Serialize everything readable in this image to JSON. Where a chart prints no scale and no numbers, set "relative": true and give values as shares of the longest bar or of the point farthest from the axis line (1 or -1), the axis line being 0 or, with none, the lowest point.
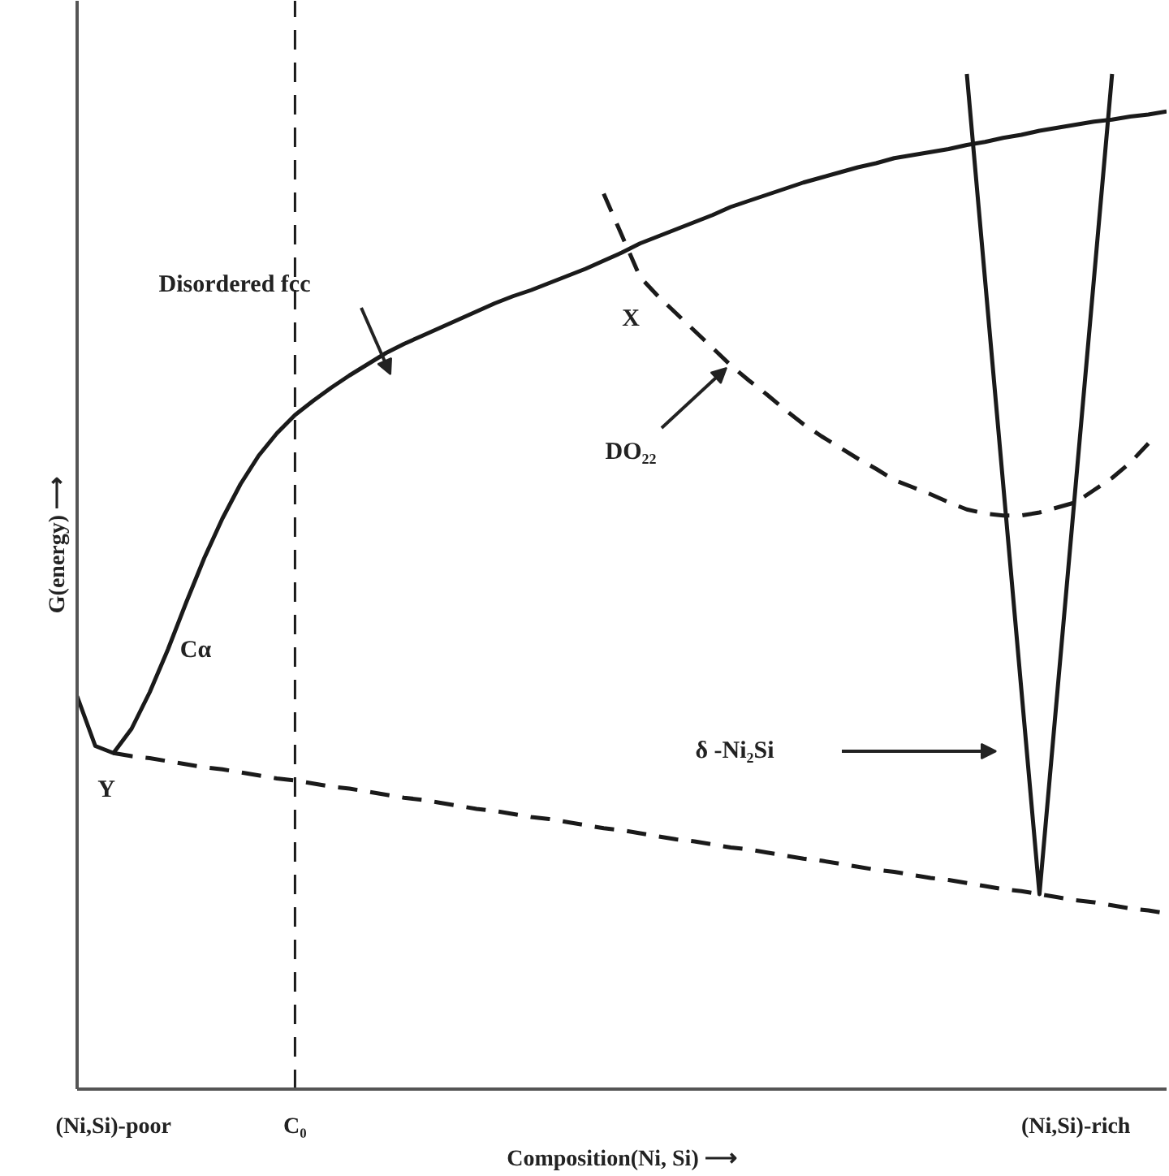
{
  "chart_data": {
    "type": "line",
    "relative": true,
    "xlabel": "Composition(Ni, Si) ⟶",
    "ylabel": "G(energy) ⟶",
    "categories": [
      null,
      null,
      "(Ni,Si)-poor",
      null,
      null,
      null,
      null,
      null,
      null,
      null,
      null,
      null,
      "C₀",
      null,
      null,
      null,
      null,
      null,
      null,
      null,
      null,
      null,
      null,
      null,
      null,
      null,
      null,
      null,
      null,
      null,
      null,
      null,
      null,
      null,
      null,
      null,
      null,
      null,
      null,
      null,
      null,
      null,
      null,
      null,
      null,
      null,
      null,
      null,
      null,
      null,
      null,
      null,
      null,
      null,
      null,
      "(Ni,Si)-rich",
      null,
      null,
      null,
      null,
      null
    ],
    "series": [
      {
        "color": "#1a1a1a",
        "line_style": "solid",
        "values": [
          0.387,
          0.338,
          0.331,
          0.355,
          0.391,
          0.433,
          0.479,
          0.523,
          0.562,
          0.596,
          0.624,
          0.646,
          0.664,
          0.678,
          0.691,
          0.703,
          0.714,
          0.725,
          0.734,
          0.742,
          0.75,
          0.758,
          0.766,
          0.774,
          0.781,
          0.787,
          0.794,
          0.801,
          0.808,
          0.816,
          0.824,
          0.833,
          0.84,
          0.847,
          0.854,
          0.861,
          0.869,
          0.875,
          0.881,
          0.887,
          0.893,
          0.898,
          0.903,
          0.908,
          0.912,
          0.917,
          0.92,
          0.923,
          0.926,
          0.93,
          0.933,
          0.937,
          0.94,
          0.944,
          0.947,
          0.95,
          0.953,
          0.955,
          0.958,
          0.96,
          0.963
        ]
      },
      {
        "color": "#1a1a1a",
        "line_style": "dashed",
        "values": [
          null,
          null,
          null,
          null,
          null,
          null,
          null,
          null,
          null,
          null,
          null,
          null,
          null,
          null,
          null,
          null,
          null,
          null,
          null,
          null,
          null,
          null,
          null,
          null,
          null,
          null,
          null,
          null,
          null,
          0.882,
          0.841,
          0.8,
          0.781,
          0.764,
          0.747,
          0.73,
          0.713,
          0.698,
          0.684,
          0.669,
          0.655,
          0.643,
          0.632,
          0.621,
          0.611,
          0.6,
          0.593,
          0.586,
          0.578,
          0.571,
          0.567,
          0.565,
          0.565,
          0.568,
          0.573,
          0.578,
          0.59,
          0.602,
          0.617,
          0.636,
          null
        ]
      },
      {
        "color": "#1a1a1a",
        "line_style": "solid",
        "values": [
          null,
          null,
          null,
          null,
          null,
          null,
          null,
          null,
          null,
          null,
          null,
          null,
          null,
          null,
          null,
          null,
          null,
          null,
          null,
          null,
          null,
          null,
          null,
          null,
          null,
          null,
          null,
          null,
          null,
          null,
          null,
          null,
          null,
          null,
          null,
          null,
          null,
          null,
          null,
          null,
          null,
          null,
          null,
          null,
          null,
          null,
          null,
          null,
          null,
          1,
          0.798,
          0.596,
          0.394,
          0.192,
          0.394,
          0.596,
          0.798,
          1,
          null,
          null,
          null
        ]
      },
      {
        "color": "#1a1a1a",
        "line_style": "dashed",
        "values": [
          null,
          null,
          0.331,
          0.328,
          0.326,
          0.323,
          0.32,
          0.317,
          0.315,
          0.312,
          0.309,
          0.306,
          0.304,
          0.301,
          0.298,
          0.296,
          0.293,
          0.29,
          0.287,
          0.285,
          0.282,
          0.279,
          0.276,
          0.274,
          0.271,
          0.268,
          0.266,
          0.263,
          0.26,
          0.257,
          0.255,
          0.252,
          0.249,
          0.246,
          0.244,
          0.241,
          0.238,
          0.236,
          0.233,
          0.23,
          0.227,
          0.225,
          0.222,
          0.219,
          0.216,
          0.214,
          0.211,
          0.208,
          0.206,
          0.203,
          0.2,
          0.197,
          0.195,
          0.192,
          0.189,
          0.186,
          0.184,
          0.181,
          0.178,
          0.176,
          0.173
        ]
      }
    ],
    "ref_lines": [
      {
        "axis": "x",
        "value": "C₀",
        "line_style": "dashed",
        "color": "#1a1a1a"
      }
    ],
    "annotations": [
      "Disordered fcc",
      "X",
      "DO₂₂",
      "Cα",
      "Y",
      "δ -Ni₂Si"
    ]
  }
}
